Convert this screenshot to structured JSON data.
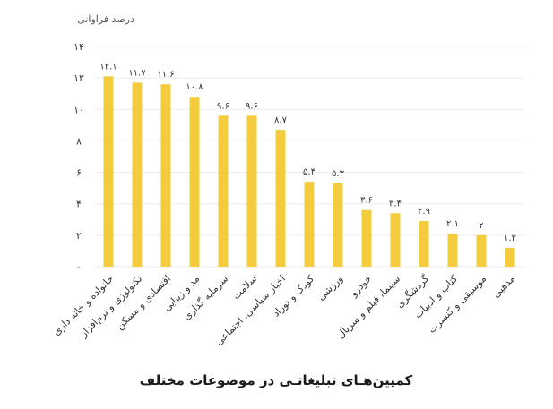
{
  "chart_data": {
    "type": "bar",
    "title": "کمپین‌هـای تبلیغاتـی در موضوعات مختلف",
    "ylabel": "درصد فراوانی",
    "xlabel": "",
    "ylim": [
      0,
      14
    ],
    "yticks": [
      "۰",
      "۲",
      "۴",
      "۶",
      "۸",
      "۱۰",
      "۱۲",
      "۱۴"
    ],
    "grid": true,
    "bar_color": "#f2cc3c",
    "categories": [
      "خانواده و خانه داری",
      "تکنولوژی و نرم‌افزار",
      "اقتصادی و مسکن",
      "مد و زیبایی",
      "سرمایه گذاری",
      "سلامت",
      "اخبار سیاسی، اجتماعی",
      "کودک و نوزاد",
      "ورزشی",
      "خودرو",
      "سینما، فیلم و سریال",
      "گردشگری",
      "کتاب و ادبیات",
      "موسیقی و کنسرت",
      "مذهبی"
    ],
    "values": [
      12.1,
      11.7,
      11.6,
      10.8,
      9.6,
      9.6,
      8.7,
      5.4,
      5.3,
      3.6,
      3.4,
      2.9,
      2.1,
      2,
      1.2
    ],
    "value_labels": [
      "۱۲.۱",
      "۱۱.۷",
      "۱۱.۶",
      "۱۰.۸",
      "۹.۶",
      "۹.۶",
      "۸.۷",
      "۵.۴",
      "۵.۳",
      "۳.۶",
      "۳.۴",
      "۲.۹",
      "۲.۱",
      "۲",
      "۱.۲"
    ]
  }
}
